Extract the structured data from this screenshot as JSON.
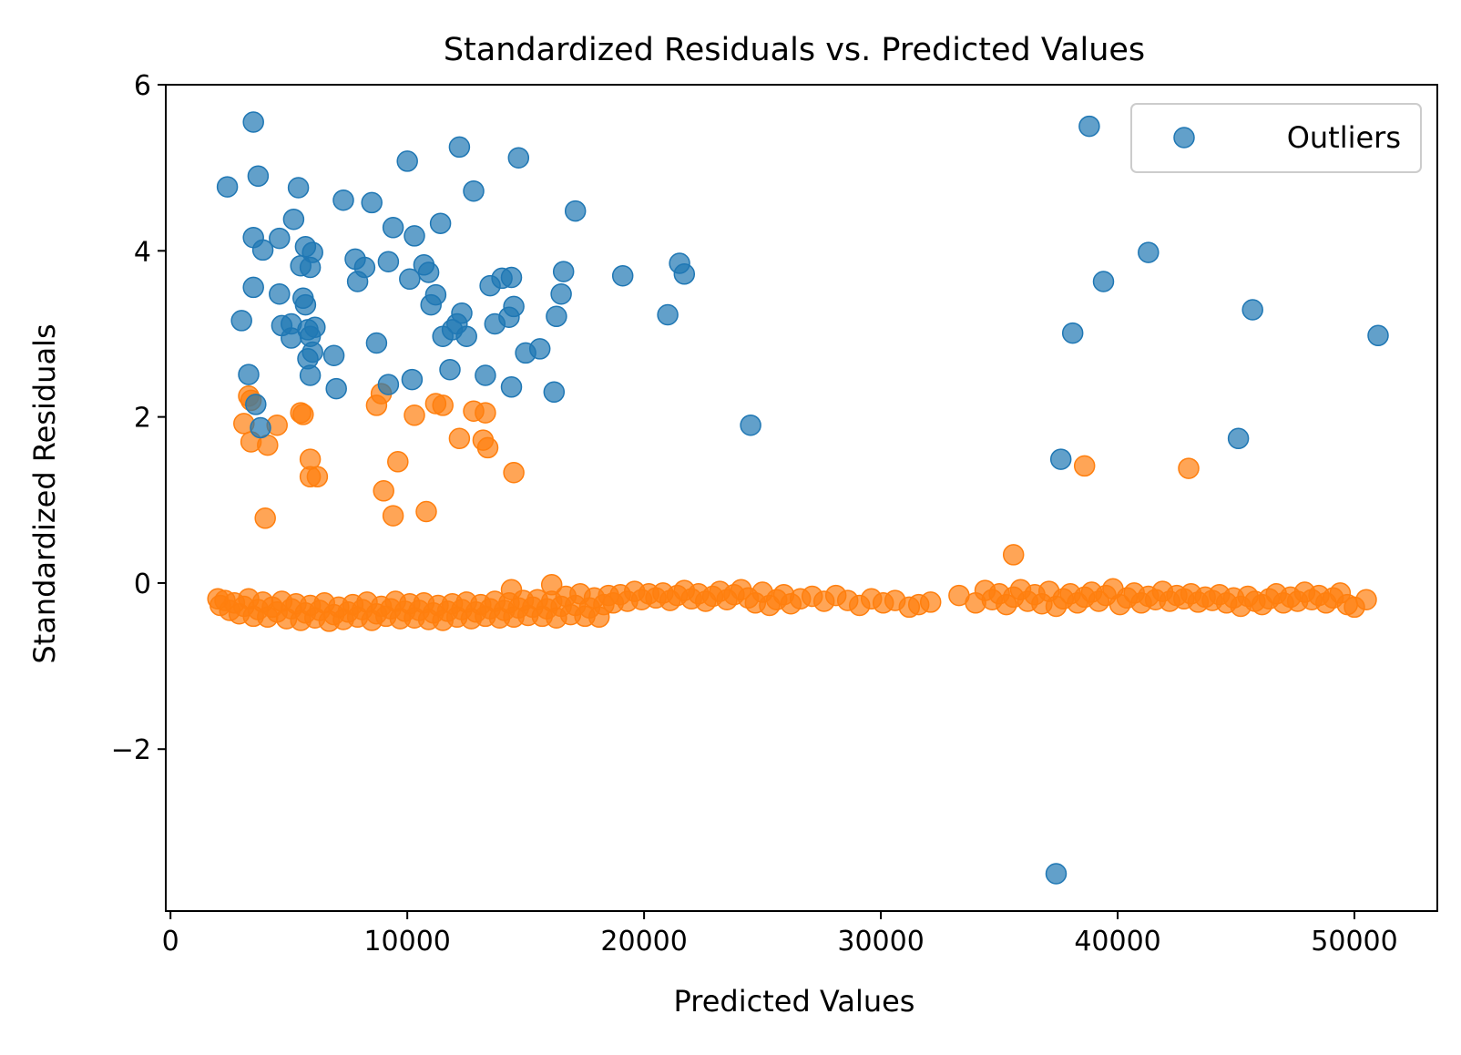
{
  "chart_data": {
    "type": "scatter",
    "title": "Standardized Residuals vs. Predicted Values",
    "xlabel": "Predicted Values",
    "ylabel": "Standardized Residuals",
    "xlim": [
      -200,
      53500
    ],
    "ylim": [
      -3.95,
      6.0
    ],
    "xticks": [
      {
        "value": 0,
        "label": "0"
      },
      {
        "value": 10000,
        "label": "10000"
      },
      {
        "value": 20000,
        "label": "20000"
      },
      {
        "value": 30000,
        "label": "30000"
      },
      {
        "value": 40000,
        "label": "40000"
      },
      {
        "value": 50000,
        "label": "50000"
      }
    ],
    "yticks": [
      {
        "value": -2,
        "label": "−2"
      },
      {
        "value": 0,
        "label": "0"
      },
      {
        "value": 2,
        "label": "2"
      },
      {
        "value": 4,
        "label": "4"
      },
      {
        "value": 6,
        "label": "6"
      }
    ],
    "grid": false,
    "legend": {
      "position": "top-right",
      "entries": [
        {
          "label": "Outliers",
          "color": "#1f77b4"
        }
      ]
    },
    "series": [
      {
        "name": "Outliers",
        "color": "#1f77b4",
        "points": [
          [
            3500,
            5.55
          ],
          [
            2400,
            4.77
          ],
          [
            3700,
            4.9
          ],
          [
            5400,
            4.76
          ],
          [
            7300,
            4.61
          ],
          [
            8500,
            4.58
          ],
          [
            10000,
            5.08
          ],
          [
            12200,
            5.25
          ],
          [
            12800,
            4.72
          ],
          [
            14700,
            5.12
          ],
          [
            17100,
            4.48
          ],
          [
            3500,
            4.16
          ],
          [
            3900,
            4.01
          ],
          [
            4600,
            4.15
          ],
          [
            5200,
            4.38
          ],
          [
            5700,
            4.05
          ],
          [
            5500,
            3.82
          ],
          [
            6000,
            3.98
          ],
          [
            5900,
            3.8
          ],
          [
            7800,
            3.9
          ],
          [
            8200,
            3.8
          ],
          [
            7900,
            3.63
          ],
          [
            9400,
            4.28
          ],
          [
            10300,
            4.18
          ],
          [
            9200,
            3.87
          ],
          [
            10700,
            3.83
          ],
          [
            10900,
            3.74
          ],
          [
            10100,
            3.66
          ],
          [
            11400,
            4.33
          ],
          [
            13500,
            3.58
          ],
          [
            14000,
            3.67
          ],
          [
            14400,
            3.68
          ],
          [
            16600,
            3.75
          ],
          [
            16500,
            3.48
          ],
          [
            19100,
            3.7
          ],
          [
            21500,
            3.85
          ],
          [
            21700,
            3.72
          ],
          [
            3500,
            3.56
          ],
          [
            3000,
            3.16
          ],
          [
            4600,
            3.48
          ],
          [
            4700,
            3.1
          ],
          [
            5100,
            3.12
          ],
          [
            5600,
            3.43
          ],
          [
            5700,
            3.35
          ],
          [
            5100,
            2.95
          ],
          [
            5800,
            3.05
          ],
          [
            6100,
            3.08
          ],
          [
            5900,
            2.97
          ],
          [
            6000,
            2.78
          ],
          [
            5800,
            2.7
          ],
          [
            5900,
            2.5
          ],
          [
            6900,
            2.74
          ],
          [
            7000,
            2.34
          ],
          [
            8700,
            2.89
          ],
          [
            9200,
            2.39
          ],
          [
            10200,
            2.45
          ],
          [
            11000,
            3.35
          ],
          [
            11200,
            3.47
          ],
          [
            11500,
            2.97
          ],
          [
            11900,
            3.05
          ],
          [
            12100,
            3.12
          ],
          [
            12300,
            3.25
          ],
          [
            12500,
            2.97
          ],
          [
            13700,
            3.12
          ],
          [
            14300,
            3.2
          ],
          [
            14500,
            3.33
          ],
          [
            13300,
            2.5
          ],
          [
            11800,
            2.57
          ],
          [
            14400,
            2.36
          ],
          [
            15000,
            2.77
          ],
          [
            15600,
            2.82
          ],
          [
            16300,
            3.21
          ],
          [
            16200,
            2.3
          ],
          [
            3300,
            2.51
          ],
          [
            3600,
            2.15
          ],
          [
            3800,
            1.87
          ],
          [
            21000,
            3.23
          ],
          [
            24500,
            1.9
          ],
          [
            38800,
            5.5
          ],
          [
            41300,
            3.98
          ],
          [
            39400,
            3.63
          ],
          [
            38100,
            3.01
          ],
          [
            45700,
            3.29
          ],
          [
            51000,
            2.98
          ],
          [
            45100,
            1.74
          ],
          [
            37600,
            1.49
          ],
          [
            37400,
            -3.5
          ]
        ]
      },
      {
        "name": "",
        "color": "#ff7f0e",
        "points": [
          [
            3300,
            2.25
          ],
          [
            3100,
            1.92
          ],
          [
            3400,
            1.7
          ],
          [
            4100,
            1.66
          ],
          [
            4500,
            1.9
          ],
          [
            3400,
            2.2
          ],
          [
            5500,
            2.05
          ],
          [
            5600,
            2.03
          ],
          [
            5900,
            1.49
          ],
          [
            5900,
            1.28
          ],
          [
            6200,
            1.28
          ],
          [
            4000,
            0.78
          ],
          [
            8700,
            2.14
          ],
          [
            8900,
            2.28
          ],
          [
            10300,
            2.02
          ],
          [
            11200,
            2.16
          ],
          [
            11500,
            2.14
          ],
          [
            12800,
            2.07
          ],
          [
            13300,
            2.05
          ],
          [
            13200,
            1.72
          ],
          [
            13400,
            1.63
          ],
          [
            12200,
            1.74
          ],
          [
            9600,
            1.46
          ],
          [
            9000,
            1.11
          ],
          [
            9400,
            0.81
          ],
          [
            10800,
            0.86
          ],
          [
            14500,
            1.33
          ],
          [
            38600,
            1.41
          ],
          [
            43000,
            1.38
          ],
          [
            35600,
            0.34
          ],
          [
            16100,
            -0.02
          ],
          [
            14400,
            -0.08
          ],
          [
            2000,
            -0.19
          ],
          [
            2100,
            -0.27
          ],
          [
            2300,
            -0.21
          ],
          [
            2500,
            -0.33
          ],
          [
            2700,
            -0.24
          ],
          [
            2900,
            -0.37
          ],
          [
            3100,
            -0.28
          ],
          [
            3300,
            -0.19
          ],
          [
            3500,
            -0.4
          ],
          [
            3700,
            -0.32
          ],
          [
            3900,
            -0.23
          ],
          [
            4100,
            -0.41
          ],
          [
            4300,
            -0.29
          ],
          [
            4500,
            -0.35
          ],
          [
            4700,
            -0.22
          ],
          [
            4900,
            -0.43
          ],
          [
            5100,
            -0.31
          ],
          [
            5300,
            -0.25
          ],
          [
            5500,
            -0.45
          ],
          [
            5700,
            -0.36
          ],
          [
            5900,
            -0.27
          ],
          [
            6100,
            -0.42
          ],
          [
            6300,
            -0.33
          ],
          [
            6500,
            -0.24
          ],
          [
            6700,
            -0.46
          ],
          [
            6900,
            -0.38
          ],
          [
            7100,
            -0.29
          ],
          [
            7300,
            -0.44
          ],
          [
            7500,
            -0.35
          ],
          [
            7700,
            -0.26
          ],
          [
            7900,
            -0.41
          ],
          [
            8100,
            -0.32
          ],
          [
            8300,
            -0.23
          ],
          [
            8500,
            -0.45
          ],
          [
            8700,
            -0.37
          ],
          [
            8900,
            -0.28
          ],
          [
            9100,
            -0.4
          ],
          [
            9300,
            -0.31
          ],
          [
            9500,
            -0.22
          ],
          [
            9700,
            -0.43
          ],
          [
            9900,
            -0.34
          ],
          [
            10100,
            -0.25
          ],
          [
            10300,
            -0.42
          ],
          [
            10500,
            -0.33
          ],
          [
            10700,
            -0.24
          ],
          [
            10900,
            -0.44
          ],
          [
            11100,
            -0.36
          ],
          [
            11300,
            -0.27
          ],
          [
            11500,
            -0.45
          ],
          [
            11700,
            -0.34
          ],
          [
            11900,
            -0.25
          ],
          [
            12100,
            -0.41
          ],
          [
            12300,
            -0.32
          ],
          [
            12500,
            -0.23
          ],
          [
            12700,
            -0.43
          ],
          [
            12900,
            -0.35
          ],
          [
            13100,
            -0.26
          ],
          [
            13300,
            -0.4
          ],
          [
            13500,
            -0.31
          ],
          [
            13700,
            -0.22
          ],
          [
            13900,
            -0.42
          ],
          [
            14100,
            -0.33
          ],
          [
            14300,
            -0.24
          ],
          [
            14500,
            -0.41
          ],
          [
            14700,
            -0.3
          ],
          [
            14900,
            -0.21
          ],
          [
            15100,
            -0.39
          ],
          [
            15300,
            -0.29
          ],
          [
            15500,
            -0.2
          ],
          [
            15700,
            -0.4
          ],
          [
            15900,
            -0.31
          ],
          [
            16100,
            -0.22
          ],
          [
            16300,
            -0.42
          ],
          [
            16500,
            -0.28
          ],
          [
            16700,
            -0.16
          ],
          [
            16900,
            -0.38
          ],
          [
            17100,
            -0.27
          ],
          [
            17300,
            -0.13
          ],
          [
            17500,
            -0.4
          ],
          [
            17700,
            -0.3
          ],
          [
            17900,
            -0.18
          ],
          [
            18100,
            -0.41
          ],
          [
            18300,
            -0.26
          ],
          [
            18500,
            -0.15
          ],
          [
            18700,
            -0.24
          ],
          [
            19000,
            -0.14
          ],
          [
            19300,
            -0.22
          ],
          [
            19600,
            -0.1
          ],
          [
            19900,
            -0.2
          ],
          [
            20200,
            -0.13
          ],
          [
            20500,
            -0.18
          ],
          [
            20800,
            -0.12
          ],
          [
            21100,
            -0.21
          ],
          [
            21400,
            -0.15
          ],
          [
            21700,
            -0.09
          ],
          [
            22000,
            -0.19
          ],
          [
            22300,
            -0.13
          ],
          [
            22600,
            -0.22
          ],
          [
            22900,
            -0.16
          ],
          [
            23200,
            -0.1
          ],
          [
            23500,
            -0.2
          ],
          [
            23800,
            -0.14
          ],
          [
            24100,
            -0.08
          ],
          [
            24400,
            -0.18
          ],
          [
            24700,
            -0.24
          ],
          [
            25000,
            -0.11
          ],
          [
            25300,
            -0.27
          ],
          [
            25600,
            -0.2
          ],
          [
            25900,
            -0.14
          ],
          [
            26200,
            -0.25
          ],
          [
            26600,
            -0.19
          ],
          [
            27100,
            -0.16
          ],
          [
            27600,
            -0.22
          ],
          [
            28100,
            -0.15
          ],
          [
            28600,
            -0.21
          ],
          [
            29100,
            -0.27
          ],
          [
            29600,
            -0.19
          ],
          [
            30100,
            -0.24
          ],
          [
            30600,
            -0.21
          ],
          [
            31200,
            -0.29
          ],
          [
            31600,
            -0.26
          ],
          [
            32100,
            -0.23
          ],
          [
            33300,
            -0.15
          ],
          [
            34000,
            -0.24
          ],
          [
            34400,
            -0.09
          ],
          [
            34700,
            -0.2
          ],
          [
            35000,
            -0.13
          ],
          [
            35300,
            -0.26
          ],
          [
            35600,
            -0.17
          ],
          [
            35900,
            -0.08
          ],
          [
            36200,
            -0.22
          ],
          [
            36500,
            -0.14
          ],
          [
            36800,
            -0.25
          ],
          [
            37100,
            -0.1
          ],
          [
            37400,
            -0.28
          ],
          [
            37700,
            -0.19
          ],
          [
            38000,
            -0.13
          ],
          [
            38300,
            -0.24
          ],
          [
            38600,
            -0.17
          ],
          [
            38900,
            -0.11
          ],
          [
            39200,
            -0.22
          ],
          [
            39500,
            -0.15
          ],
          [
            39800,
            -0.07
          ],
          [
            40100,
            -0.26
          ],
          [
            40400,
            -0.18
          ],
          [
            40700,
            -0.12
          ],
          [
            41000,
            -0.24
          ],
          [
            41300,
            -0.16
          ],
          [
            41600,
            -0.2
          ],
          [
            41900,
            -0.1
          ],
          [
            42200,
            -0.22
          ],
          [
            42500,
            -0.15
          ],
          [
            42800,
            -0.19
          ],
          [
            43100,
            -0.13
          ],
          [
            43400,
            -0.23
          ],
          [
            43700,
            -0.17
          ],
          [
            44000,
            -0.21
          ],
          [
            44300,
            -0.14
          ],
          [
            44600,
            -0.24
          ],
          [
            44900,
            -0.18
          ],
          [
            45200,
            -0.28
          ],
          [
            45500,
            -0.16
          ],
          [
            45800,
            -0.22
          ],
          [
            46100,
            -0.26
          ],
          [
            46400,
            -0.19
          ],
          [
            46700,
            -0.13
          ],
          [
            47000,
            -0.24
          ],
          [
            47300,
            -0.17
          ],
          [
            47600,
            -0.22
          ],
          [
            47900,
            -0.11
          ],
          [
            48200,
            -0.2
          ],
          [
            48500,
            -0.15
          ],
          [
            48800,
            -0.24
          ],
          [
            49100,
            -0.18
          ],
          [
            49400,
            -0.12
          ],
          [
            49700,
            -0.26
          ],
          [
            50000,
            -0.29
          ],
          [
            50500,
            -0.2
          ]
        ]
      }
    ]
  }
}
